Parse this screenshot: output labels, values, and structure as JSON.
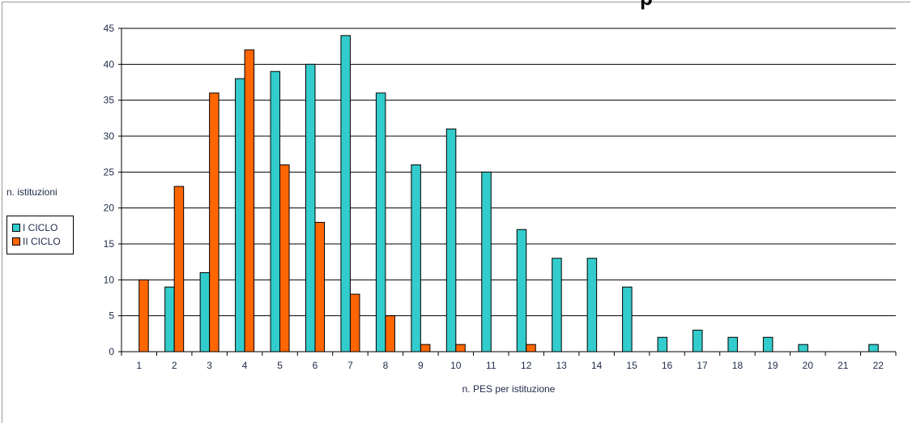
{
  "chart_data": {
    "type": "bar",
    "title": "",
    "xlabel": "n. PES per istituzione",
    "ylabel": "n. istituzioni",
    "ylim": [
      0,
      45
    ],
    "yticks": [
      0,
      5,
      10,
      15,
      20,
      25,
      30,
      35,
      40,
      45
    ],
    "grid": true,
    "legend_position": "left",
    "categories": [
      "1",
      "2",
      "3",
      "4",
      "5",
      "6",
      "7",
      "8",
      "9",
      "10",
      "11",
      "12",
      "13",
      "14",
      "15",
      "16",
      "17",
      "18",
      "19",
      "20",
      "21",
      "22"
    ],
    "series": [
      {
        "name": "I CICLO",
        "color": "#33cccc",
        "values": [
          0,
          9,
          11,
          38,
          39,
          40,
          44,
          36,
          26,
          31,
          25,
          17,
          13,
          13,
          9,
          2,
          3,
          2,
          2,
          1,
          0,
          1
        ]
      },
      {
        "name": "II CICLO",
        "color": "#ff6600",
        "values": [
          10,
          23,
          36,
          42,
          26,
          18,
          8,
          5,
          1,
          1,
          0,
          1,
          0,
          0,
          0,
          0,
          0,
          0,
          0,
          0,
          0,
          0
        ]
      }
    ]
  }
}
